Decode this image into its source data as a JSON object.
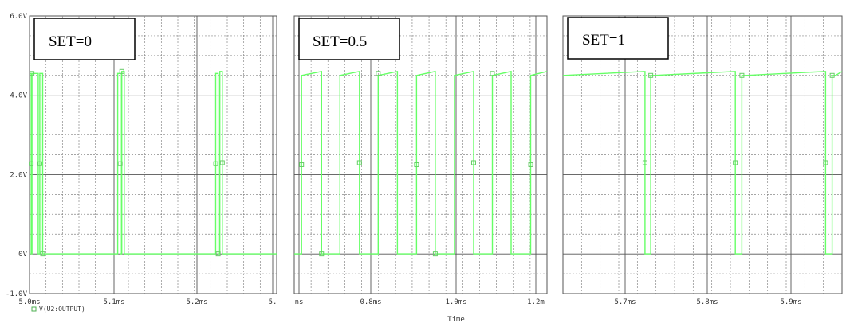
{
  "chart_data": [
    {
      "type": "line",
      "annotation": "SET=0",
      "x_ticks": [
        "5.0ms",
        "5.1ms",
        "5.2ms",
        "5."
      ],
      "y_ticks": [
        "6.0V",
        "4.0V",
        "2.0V",
        "0V",
        "-1.0V"
      ],
      "xlim": [
        5.0,
        5.3
      ],
      "ylim": [
        -1.0,
        6.0
      ],
      "legend": "V(U2:OUTPUT)",
      "series_color": "#66ff66",
      "series": [
        {
          "x": [
            5.0,
            5.002,
            5.002,
            5.003,
            5.003,
            5.0105,
            5.0105,
            5.0125,
            5.0125,
            5.016,
            5.016,
            5.107,
            5.107,
            5.11,
            5.11,
            5.112,
            5.112,
            5.115,
            5.115,
            5.226,
            5.226,
            5.229,
            5.229,
            5.231,
            5.231,
            5.234,
            5.234,
            5.3
          ],
          "y": [
            4.55,
            4.55,
            0.0,
            0.0,
            4.55,
            4.55,
            0.0,
            0.0,
            4.55,
            4.55,
            0.0,
            0.0,
            4.55,
            4.55,
            0.0,
            0.0,
            4.6,
            4.6,
            0.0,
            0.0,
            4.55,
            4.55,
            0.0,
            0.0,
            4.6,
            4.6,
            0.0,
            0.0
          ]
        }
      ]
    },
    {
      "type": "line",
      "annotation": "SET=0.5",
      "x_ticks": [
        "ns",
        "0.8ms",
        "1.0ms",
        "1.2m"
      ],
      "xlabel": "Time",
      "xlim": [
        0.6,
        1.22
      ],
      "ylim": [
        -1.0,
        6.0
      ],
      "series_color": "#66ff66",
      "series": [
        {
          "x": [
            0.6,
            0.618,
            0.618,
            0.667,
            0.667,
            0.712,
            0.712,
            0.76,
            0.76,
            0.806,
            0.806,
            0.853,
            0.853,
            0.9,
            0.9,
            0.946,
            0.946,
            0.993,
            0.993,
            1.04,
            1.04,
            1.086,
            1.086,
            1.132,
            1.132,
            1.18,
            1.18,
            1.22
          ],
          "y": [
            0.0,
            0.0,
            4.5,
            4.6,
            0.0,
            0.0,
            4.5,
            4.6,
            0.0,
            0.0,
            4.5,
            4.6,
            0.0,
            0.0,
            4.5,
            4.6,
            0.0,
            0.0,
            4.5,
            4.6,
            0.0,
            0.0,
            4.5,
            4.6,
            0.0,
            0.0,
            4.5,
            4.6
          ]
        }
      ]
    },
    {
      "type": "line",
      "annotation": "SET=1",
      "x_ticks": [
        "5.7ms",
        "5.8ms",
        "5.9ms"
      ],
      "xlim": [
        5.635,
        5.975
      ],
      "ylim": [
        -1.0,
        6.0
      ],
      "series_color": "#66ff66",
      "series": [
        {
          "x": [
            5.635,
            5.735,
            5.735,
            5.742,
            5.742,
            5.745,
            5.745,
            5.845,
            5.845,
            5.853,
            5.853,
            5.857,
            5.857,
            5.955,
            5.955,
            5.963,
            5.963,
            5.967,
            5.967,
            5.975
          ],
          "y": [
            4.5,
            4.6,
            0.0,
            0.0,
            4.5,
            4.5,
            4.5,
            4.6,
            0.0,
            0.0,
            4.5,
            4.5,
            4.5,
            4.6,
            0.0,
            0.0,
            4.5,
            4.5,
            4.5,
            4.6
          ]
        }
      ]
    }
  ]
}
